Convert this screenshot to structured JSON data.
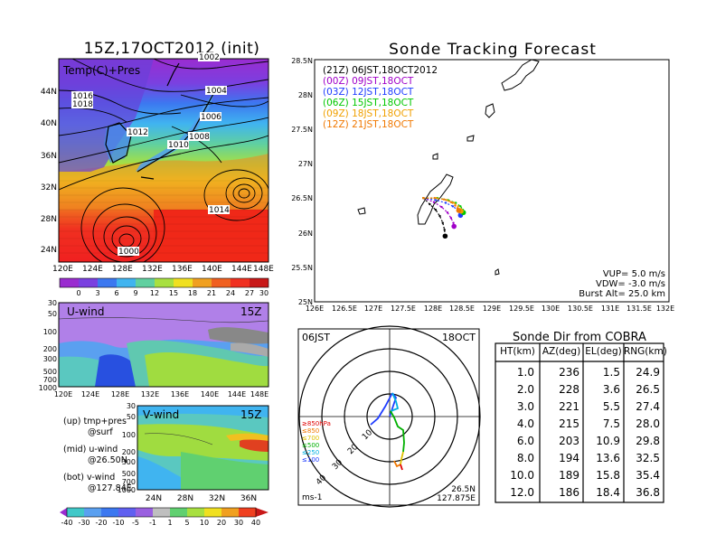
{
  "left_panel": {
    "title": "15Z,17OCT2012 (init)",
    "map_label": "Temp(C)+Pres",
    "x_ticks": [
      "120E",
      "124E",
      "128E",
      "132E",
      "136E",
      "140E",
      "144E",
      "148E"
    ],
    "y_ticks": [
      "24N",
      "28N",
      "32N",
      "36N",
      "40N",
      "44N"
    ],
    "pressure_labels": [
      "1000",
      "1002",
      "1004",
      "1006",
      "1008",
      "1010",
      "1012",
      "1014",
      "1016",
      "1018"
    ],
    "colorbar_ticks": [
      "0",
      "3",
      "6",
      "9",
      "12",
      "15",
      "18",
      "21",
      "24",
      "27",
      "30"
    ]
  },
  "u_wind_panel": {
    "label": "U-wind",
    "time": "15Z",
    "y_ticks": [
      "30",
      "50",
      "100",
      "200",
      "300",
      "500",
      "700",
      "1000"
    ],
    "x_ticks": [
      "120E",
      "124E",
      "128E",
      "132E",
      "136E",
      "140E",
      "144E",
      "148E"
    ]
  },
  "v_wind_panel": {
    "label": "V-wind",
    "time": "15Z",
    "y_ticks": [
      "30",
      "50",
      "100",
      "200",
      "300",
      "500",
      "700",
      "1000"
    ],
    "x_ticks": [
      "24N",
      "28N",
      "32N",
      "36N"
    ],
    "colorbar_ticks": [
      "-40",
      "-30",
      "-20",
      "-10",
      "-5",
      "-1",
      "1",
      "5",
      "10",
      "20",
      "30",
      "40"
    ]
  },
  "legend_text": {
    "up": "(up) tmp+pres",
    "up2": "@surf",
    "mid": "(mid) u-wind",
    "mid2": "@26.50N",
    "bot": "(bot) v-wind",
    "bot2": "@127.84E"
  },
  "tracking": {
    "title": "Sonde Tracking Forecast",
    "series_labels": [
      {
        "text": "(21Z) 06JST,18OCT2012",
        "color": "#000000"
      },
      {
        "text": "(00Z) 09JST,18OCT",
        "color": "#a000c8"
      },
      {
        "text": "(03Z) 12JST,18OCT",
        "color": "#1e3cff"
      },
      {
        "text": "(06Z) 15JST,18OCT",
        "color": "#00c800"
      },
      {
        "text": "(09Z) 18JST,18OCT",
        "color": "#f0a000"
      },
      {
        "text": "(12Z) 21JST,18OCT",
        "color": "#f07800"
      }
    ],
    "x_ticks": [
      "126E",
      "126.5E",
      "127E",
      "127.5E",
      "128E",
      "128.5E",
      "129E",
      "129.5E",
      "130E",
      "130.5E",
      "131E",
      "131.5E",
      "132E"
    ],
    "y_ticks": [
      "25N",
      "25.5N",
      "26N",
      "26.5N",
      "27N",
      "27.5N",
      "28N",
      "28.5N"
    ],
    "params": [
      "VUP= 5.0 m/s",
      "VDW= -3.0 m/s",
      "Burst Alt= 25.0 km"
    ]
  },
  "hodograph": {
    "time_left": "06JST",
    "time_right": "18OCT",
    "levels": [
      {
        "text": "≥850hPa",
        "color": "#e00000"
      },
      {
        "text": "≤850",
        "color": "#f07800"
      },
      {
        "text": "≤700",
        "color": "#e0c000"
      },
      {
        "text": "≤500",
        "color": "#00b000"
      },
      {
        "text": "≤250",
        "color": "#00b0e0"
      },
      {
        "text": "≤100",
        "color": "#1e3cff"
      }
    ],
    "ring_labels": [
      "10",
      "20",
      "30",
      "40"
    ],
    "unit": "ms-1",
    "loc1": "26.5N",
    "loc2": "127.875E"
  },
  "table": {
    "title": "Sonde Dir from COBRA",
    "headers": [
      "HT(km)",
      "AZ(deg)",
      "EL(deg)",
      "RNG(km)"
    ],
    "rows": [
      [
        "1.0",
        "236",
        "1.5",
        "24.9"
      ],
      [
        "2.0",
        "228",
        "3.6",
        "26.5"
      ],
      [
        "3.0",
        "221",
        "5.5",
        "27.4"
      ],
      [
        "4.0",
        "215",
        "7.5",
        "28.0"
      ],
      [
        "6.0",
        "203",
        "10.9",
        "29.8"
      ],
      [
        "8.0",
        "194",
        "13.6",
        "32.5"
      ],
      [
        "10.0",
        "189",
        "15.8",
        "35.4"
      ],
      [
        "12.0",
        "186",
        "18.4",
        "36.8"
      ]
    ]
  },
  "chart_data": [
    {
      "type": "line",
      "title": "Sonde Tracking Forecast",
      "xlim": [
        126,
        132
      ],
      "ylim": [
        25,
        28.5
      ],
      "series": [
        {
          "name": "(21Z) 06JST,18OCT2012",
          "color": "#000000",
          "x": [
            127.84,
            127.95,
            128.05,
            128.12,
            128.17,
            128.2,
            128.21
          ],
          "y": [
            26.5,
            26.41,
            26.33,
            26.24,
            26.14,
            26.04,
            25.95
          ]
        },
        {
          "name": "(00Z) 09JST,18OCT",
          "color": "#a000c8",
          "x": [
            127.84,
            128.02,
            128.15,
            128.25,
            128.31,
            128.35,
            128.36
          ],
          "y": [
            26.5,
            26.44,
            26.37,
            26.29,
            26.21,
            26.14,
            26.09
          ]
        },
        {
          "name": "(03Z) 12JST,18OCT",
          "color": "#1e3cff",
          "x": [
            127.84,
            128.05,
            128.22,
            128.34,
            128.42,
            128.46,
            128.47
          ],
          "y": [
            26.5,
            26.47,
            26.43,
            26.38,
            26.33,
            26.28,
            26.25
          ]
        },
        {
          "name": "(06Z) 15JST,18OCT",
          "color": "#00c800",
          "x": [
            127.84,
            128.08,
            128.26,
            128.39,
            128.47,
            128.51,
            128.52
          ],
          "y": [
            26.5,
            26.5,
            26.47,
            26.43,
            26.38,
            26.33,
            26.29
          ]
        },
        {
          "name": "(09Z) 18JST,18OCT",
          "color": "#f0a000",
          "x": [
            127.84,
            128.06,
            128.24,
            128.36,
            128.43,
            128.47,
            128.48
          ],
          "y": [
            26.5,
            26.5,
            26.47,
            26.43,
            26.38,
            26.34,
            26.31
          ]
        },
        {
          "name": "(12Z) 21JST,18OCT",
          "color": "#f07800",
          "x": [
            127.84,
            128.03,
            128.19,
            128.31,
            128.38,
            128.42,
            128.44
          ],
          "y": [
            26.5,
            26.5,
            26.48,
            26.44,
            26.39,
            26.35,
            26.32
          ]
        }
      ]
    },
    {
      "type": "table",
      "title": "Sonde Dir from COBRA",
      "columns": [
        "HT(km)",
        "AZ(deg)",
        "EL(deg)",
        "RNG(km)"
      ],
      "rows": [
        [
          1.0,
          236,
          1.5,
          24.9
        ],
        [
          2.0,
          228,
          3.6,
          26.5
        ],
        [
          3.0,
          221,
          5.5,
          27.4
        ],
        [
          4.0,
          215,
          7.5,
          28.0
        ],
        [
          6.0,
          203,
          10.9,
          29.8
        ],
        [
          8.0,
          194,
          13.6,
          32.5
        ],
        [
          10.0,
          189,
          15.8,
          35.4
        ],
        [
          12.0,
          186,
          18.4,
          36.8
        ]
      ]
    }
  ]
}
